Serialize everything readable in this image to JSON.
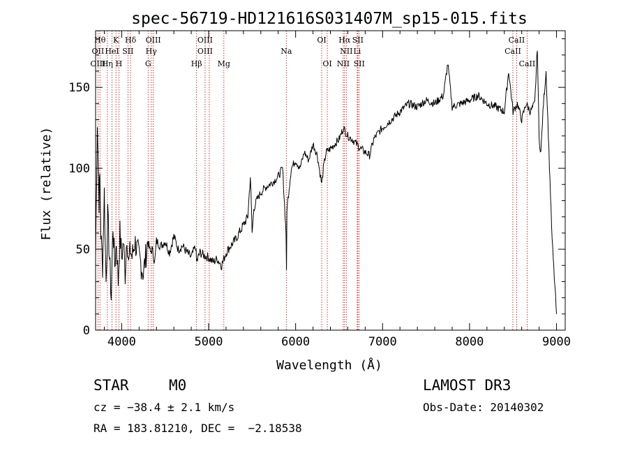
{
  "chart_data": {
    "type": "line",
    "title": "spec-56719-HD121616S031407M_sp15-015.fits",
    "xlabel": "Wavelength (Å)",
    "ylabel": "Flux (relative)",
    "xlim": [
      3700,
      9100
    ],
    "ylim": [
      0,
      185
    ],
    "x_ticks": [
      4000,
      5000,
      6000,
      7000,
      8000,
      9000
    ],
    "y_ticks": [
      0,
      50,
      100,
      150
    ],
    "series": [
      {
        "name": "flux",
        "x": [
          3700,
          3720,
          3740,
          3750,
          3760,
          3780,
          3800,
          3820,
          3840,
          3860,
          3880,
          3900,
          3920,
          3940,
          3960,
          3980,
          4000,
          4020,
          4040,
          4060,
          4080,
          4100,
          4120,
          4150,
          4200,
          4250,
          4300,
          4330,
          4350,
          4380,
          4400,
          4450,
          4500,
          4550,
          4600,
          4650,
          4700,
          4750,
          4800,
          4850,
          4861,
          4900,
          4950,
          5000,
          5050,
          5100,
          5150,
          5200,
          5250,
          5300,
          5350,
          5400,
          5450,
          5480,
          5500,
          5520,
          5550,
          5600,
          5650,
          5700,
          5750,
          5800,
          5850,
          5890,
          5895,
          5900,
          5950,
          6000,
          6050,
          6100,
          6150,
          6200,
          6250,
          6300,
          6320,
          6350,
          6400,
          6450,
          6500,
          6550,
          6600,
          6650,
          6700,
          6750,
          6800,
          6850,
          6900,
          6950,
          7000,
          7100,
          7200,
          7300,
          7400,
          7500,
          7600,
          7700,
          7750,
          7800,
          7900,
          8000,
          8100,
          8200,
          8300,
          8400,
          8450,
          8500,
          8550,
          8600,
          8650,
          8700,
          8750,
          8780,
          8800,
          8820,
          8850,
          8880,
          8900,
          8950,
          9000
        ],
        "y": [
          45,
          130,
          80,
          95,
          60,
          40,
          85,
          30,
          70,
          45,
          20,
          65,
          40,
          55,
          30,
          60,
          45,
          55,
          35,
          60,
          40,
          50,
          45,
          55,
          45,
          35,
          55,
          48,
          50,
          42,
          55,
          52,
          55,
          48,
          58,
          50,
          52,
          48,
          45,
          52,
          42,
          48,
          46,
          45,
          42,
          44,
          40,
          48,
          52,
          55,
          60,
          65,
          70,
          95,
          60,
          75,
          80,
          85,
          88,
          90,
          92,
          95,
          100,
          60,
          35,
          75,
          100,
          105,
          100,
          110,
          105,
          115,
          108,
          90,
          100,
          110,
          112,
          115,
          118,
          125,
          120,
          118,
          115,
          112,
          110,
          108,
          118,
          122,
          125,
          130,
          135,
          140,
          138,
          142,
          140,
          145,
          165,
          138,
          140,
          142,
          145,
          140,
          138,
          135,
          160,
          135,
          140,
          130,
          140,
          135,
          140,
          175,
          118,
          110,
          140,
          160,
          130,
          55,
          10
        ],
        "label_positions_note": "spectral line markers below"
      }
    ],
    "line_markers": [
      {
        "label": "Hθ",
        "x": 3750,
        "row": 0
      },
      {
        "label": "K",
        "x": 3934,
        "row": 0
      },
      {
        "label": "Hδ",
        "x": 4102,
        "row": 0
      },
      {
        "label": "OIII",
        "x": 4363,
        "row": 0
      },
      {
        "label": "OIII",
        "x": 4959,
        "row": 0
      },
      {
        "label": "OI",
        "x": 6300,
        "row": 0
      },
      {
        "label": "Hα",
        "x": 6563,
        "row": 0
      },
      {
        "label": "SII",
        "x": 6716,
        "row": 0
      },
      {
        "label": "CaII",
        "x": 8542,
        "row": 0
      },
      {
        "label": "OII",
        "x": 3727,
        "row": 1
      },
      {
        "label": "HeI",
        "x": 3889,
        "row": 1
      },
      {
        "label": "SII",
        "x": 4072,
        "row": 1
      },
      {
        "label": "Hγ",
        "x": 4340,
        "row": 1
      },
      {
        "label": "OIII",
        "x": 4959,
        "row": 1
      },
      {
        "label": "Na",
        "x": 5893,
        "row": 1
      },
      {
        "label": "NII",
        "x": 6583,
        "row": 1
      },
      {
        "label": "Li",
        "x": 6708,
        "row": 1
      },
      {
        "label": "CaII",
        "x": 8498,
        "row": 1
      },
      {
        "label": "OIII",
        "x": 3727,
        "row": 2
      },
      {
        "label": "Hη",
        "x": 3835,
        "row": 2
      },
      {
        "label": "H",
        "x": 3968,
        "row": 2
      },
      {
        "label": "G",
        "x": 4304,
        "row": 2
      },
      {
        "label": "Hβ",
        "x": 4861,
        "row": 2
      },
      {
        "label": "Mg",
        "x": 5175,
        "row": 2
      },
      {
        "label": "OI",
        "x": 6364,
        "row": 2
      },
      {
        "label": "NII",
        "x": 6548,
        "row": 2
      },
      {
        "label": "SII",
        "x": 6731,
        "row": 2
      },
      {
        "label": "CaII",
        "x": 8662,
        "row": 2
      }
    ],
    "marker_lines_x": [
      3727,
      3750,
      3835,
      3889,
      3934,
      3968,
      4072,
      4102,
      4304,
      4340,
      4363,
      4861,
      4959,
      5007,
      5175,
      5893,
      6300,
      6364,
      6548,
      6563,
      6583,
      6708,
      6716,
      6731,
      8498,
      8542,
      8662
    ]
  },
  "info": {
    "object_class": "STAR",
    "subclass": "M0",
    "survey": "LAMOST DR3",
    "cz": "cz = −38.4 ± 2.1 km/s",
    "obs_date": "Obs-Date: 20140302",
    "coords": "RA = 183.81210, DEC =  −2.18538"
  },
  "colors": {
    "spectrum": "#000000",
    "marker_line": "#c00000",
    "text": "#000000"
  }
}
